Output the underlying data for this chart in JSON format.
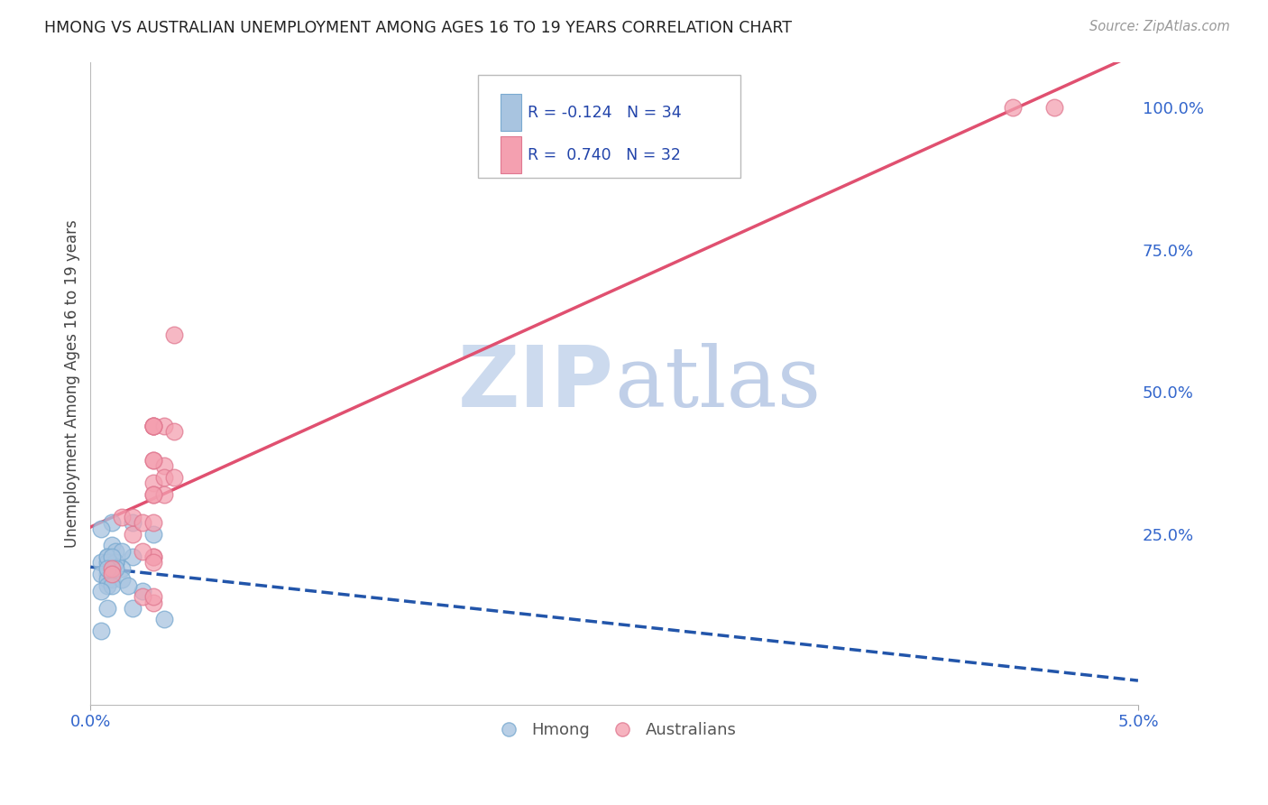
{
  "title": "HMONG VS AUSTRALIAN UNEMPLOYMENT AMONG AGES 16 TO 19 YEARS CORRELATION CHART",
  "source": "Source: ZipAtlas.com",
  "ylabel": "Unemployment Among Ages 16 to 19 years",
  "hmong_color": "#a8c4e0",
  "hmong_edge_color": "#7aaad0",
  "hmong_line_color": "#2255aa",
  "australian_color": "#f4a0b0",
  "australian_edge_color": "#e07890",
  "australian_line_color": "#e05070",
  "watermark_zip_color": "#c8d8f0",
  "watermark_atlas_color": "#b8c8e8",
  "background_color": "#ffffff",
  "grid_color": "#cccccc",
  "tick_color": "#3366cc",
  "legend_text_color": "#2244aa",
  "axis_label_color": "#444444",
  "source_color": "#999999",
  "title_color": "#222222",
  "hmong_x": [
    0.001,
    0.002,
    0.003,
    0.0005,
    0.001,
    0.002,
    0.0008,
    0.0012,
    0.0005,
    0.0008,
    0.001,
    0.0015,
    0.001,
    0.0008,
    0.0012,
    0.0005,
    0.0008,
    0.001,
    0.0015,
    0.0008,
    0.001,
    0.0012,
    0.0008,
    0.0015,
    0.001,
    0.0012,
    0.0008,
    0.0005,
    0.0008,
    0.0005,
    0.0025,
    0.002,
    0.0035,
    0.0018
  ],
  "hmong_y": [
    0.27,
    0.27,
    0.25,
    0.26,
    0.23,
    0.21,
    0.21,
    0.22,
    0.2,
    0.2,
    0.19,
    0.19,
    0.18,
    0.18,
    0.2,
    0.18,
    0.17,
    0.17,
    0.17,
    0.16,
    0.16,
    0.2,
    0.21,
    0.22,
    0.21,
    0.19,
    0.19,
    0.15,
    0.12,
    0.08,
    0.15,
    0.12,
    0.1,
    0.16
  ],
  "aust_x": [
    0.001,
    0.001,
    0.0015,
    0.002,
    0.002,
    0.0025,
    0.003,
    0.003,
    0.003,
    0.003,
    0.003,
    0.0035,
    0.003,
    0.003,
    0.0035,
    0.0035,
    0.003,
    0.003,
    0.003,
    0.0035,
    0.003,
    0.0025,
    0.003,
    0.003,
    0.0025,
    0.003,
    0.004,
    0.004,
    0.004,
    0.046,
    0.044,
    0.003
  ],
  "aust_y": [
    0.19,
    0.18,
    0.28,
    0.25,
    0.28,
    0.27,
    0.44,
    0.44,
    0.38,
    0.27,
    0.34,
    0.44,
    0.44,
    0.44,
    0.37,
    0.35,
    0.32,
    0.21,
    0.21,
    0.32,
    0.32,
    0.22,
    0.2,
    0.13,
    0.14,
    0.14,
    0.35,
    0.43,
    0.6,
    1.0,
    1.0,
    0.38
  ],
  "xlim": [
    0.0,
    0.05
  ],
  "ylim": [
    -0.05,
    1.08
  ],
  "xticks": [
    0.0,
    0.05
  ],
  "xticklabels": [
    "0.0%",
    "5.0%"
  ],
  "yticks_right": [
    0.0,
    0.25,
    0.5,
    0.75,
    1.0
  ],
  "yticklabels_right": [
    "",
    "25.0%",
    "50.0%",
    "75.0%",
    "100.0%"
  ],
  "legend_R1": "R = -0.124",
  "legend_N1": "N = 34",
  "legend_R2": "R =  0.740",
  "legend_N2": "N = 32",
  "legend_label1": "Hmong",
  "legend_label2": "Australians"
}
